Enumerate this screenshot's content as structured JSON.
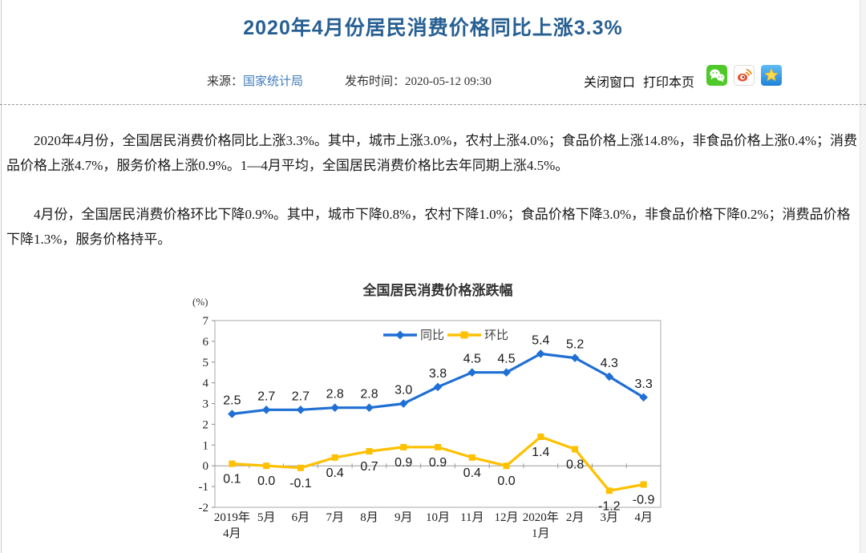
{
  "page": {
    "title": "2020年4月份居民消费价格同比上涨3.3%",
    "meta": {
      "source_label": "来源：",
      "source_link": "国家统计局",
      "publish_label": "发布时间：",
      "publish_time": "2020-05-12 09:30",
      "close_window": "关闭窗口",
      "print_page": "打印本页",
      "share_icons": [
        "wechat-icon",
        "weibo-icon",
        "qzone-icon"
      ]
    },
    "paragraphs": [
      "2020年4月份，全国居民消费价格同比上涨3.3%。其中，城市上涨3.0%，农村上涨4.0%；食品价格上涨14.8%，非食品价格上涨0.4%；消费品价格上涨4.7%，服务价格上涨0.9%。1—4月平均，全国居民消费价格比去年同期上涨4.5%。",
      "4月份，全国居民消费价格环比下降0.9%。其中，城市下降0.8%，农村下降1.0%；食品价格下降3.0%，非食品价格下降0.2%；消费品价格下降1.3%，服务价格持平。"
    ]
  },
  "chart_data": {
    "type": "line",
    "title": "全国居民消费价格涨跌幅",
    "unit_label": "(%)",
    "categories": [
      "2019年\n4月",
      "5月",
      "6月",
      "7月",
      "8月",
      "9月",
      "10月",
      "11月",
      "12月",
      "2020年\n1月",
      "2月",
      "3月",
      "4月"
    ],
    "series": [
      {
        "name": "同比",
        "color": "#1f6fd4",
        "marker": "diamond",
        "values": [
          2.5,
          2.7,
          2.7,
          2.8,
          2.8,
          3.0,
          3.8,
          4.5,
          4.5,
          5.4,
          5.2,
          4.3,
          3.3
        ]
      },
      {
        "name": "环比",
        "color": "#ffc000",
        "marker": "square",
        "values": [
          0.1,
          0.0,
          -0.1,
          0.4,
          0.7,
          0.9,
          0.9,
          0.4,
          0.0,
          1.4,
          0.8,
          -1.2,
          -0.9
        ]
      }
    ],
    "ylim": [
      -2,
      7
    ],
    "yticks": [
      7,
      6,
      5,
      4,
      3,
      2,
      1,
      0,
      -1,
      -2
    ],
    "grid": false,
    "legend_position": "top-center"
  },
  "colors": {
    "title_blue": "#275f93",
    "link_blue": "#3f7cba",
    "yoy_line": "#1f6fd4",
    "mom_line": "#ffc000"
  }
}
